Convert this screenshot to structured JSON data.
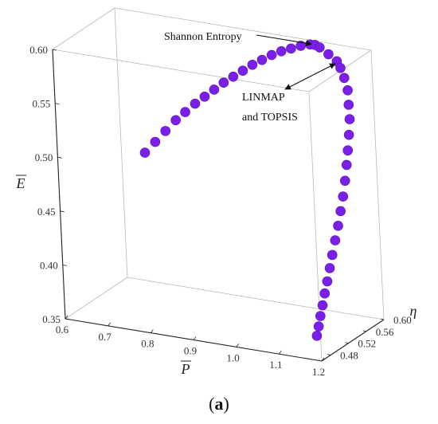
{
  "chart_data": {
    "type": "scatter",
    "projection": "3d",
    "colors": {
      "points": "#7a1fe8",
      "box": "#b8b8b8",
      "axis": "#222222"
    },
    "axes": {
      "x": {
        "label": "P",
        "overline": true,
        "range": [
          0.6,
          1.2
        ],
        "ticks": [
          "0.6",
          "0.7",
          "0.8",
          "0.9",
          "1.0",
          "1.1",
          "1.2"
        ]
      },
      "y": {
        "label": "η",
        "range": [
          0.46,
          0.6
        ],
        "ticks": [
          "0.48",
          "0.52",
          "0.56",
          "0.60"
        ]
      },
      "z": {
        "label": "E",
        "overline": true,
        "range": [
          0.35,
          0.6
        ],
        "ticks": [
          "0.35",
          "0.40",
          "0.45",
          "0.50",
          "0.55",
          "0.60"
        ]
      }
    },
    "series": [
      {
        "points": [
          [
            0.72,
            0.54,
            0.49
          ],
          [
            0.74,
            0.545,
            0.5
          ],
          [
            0.76,
            0.55,
            0.51
          ],
          [
            0.78,
            0.555,
            0.52
          ],
          [
            0.8,
            0.558,
            0.528
          ],
          [
            0.82,
            0.562,
            0.536
          ],
          [
            0.84,
            0.565,
            0.543
          ],
          [
            0.86,
            0.568,
            0.55
          ],
          [
            0.88,
            0.571,
            0.557
          ],
          [
            0.9,
            0.574,
            0.563
          ],
          [
            0.92,
            0.577,
            0.569
          ],
          [
            0.94,
            0.58,
            0.575
          ],
          [
            0.96,
            0.583,
            0.58
          ],
          [
            0.98,
            0.586,
            0.585
          ],
          [
            1.0,
            0.589,
            0.589
          ],
          [
            1.02,
            0.592,
            0.592
          ],
          [
            1.04,
            0.595,
            0.595
          ],
          [
            1.06,
            0.597,
            0.597
          ],
          [
            1.07,
            0.598,
            0.597
          ],
          [
            1.08,
            0.599,
            0.595
          ],
          [
            1.1,
            0.599,
            0.59
          ],
          [
            1.12,
            0.598,
            0.585
          ],
          [
            1.13,
            0.596,
            0.58
          ],
          [
            1.14,
            0.594,
            0.572
          ],
          [
            1.15,
            0.591,
            0.562
          ],
          [
            1.155,
            0.587,
            0.55
          ],
          [
            1.16,
            0.583,
            0.538
          ],
          [
            1.162,
            0.578,
            0.525
          ],
          [
            1.163,
            0.573,
            0.512
          ],
          [
            1.164,
            0.568,
            0.5
          ],
          [
            1.165,
            0.562,
            0.487
          ],
          [
            1.165,
            0.556,
            0.474
          ],
          [
            1.164,
            0.55,
            0.462
          ],
          [
            1.163,
            0.544,
            0.45
          ],
          [
            1.161,
            0.538,
            0.438
          ],
          [
            1.159,
            0.532,
            0.426
          ],
          [
            1.157,
            0.527,
            0.415
          ],
          [
            1.155,
            0.522,
            0.404
          ],
          [
            1.153,
            0.517,
            0.394
          ],
          [
            1.151,
            0.513,
            0.384
          ],
          [
            1.149,
            0.509,
            0.375
          ],
          [
            1.147,
            0.506,
            0.366
          ],
          [
            1.145,
            0.503,
            0.358
          ]
        ]
      }
    ],
    "annotations": [
      {
        "text": "Shannon Entropy",
        "point": [
          1.07,
          0.598,
          0.597
        ]
      },
      {
        "text": "LINMAP",
        "point": [
          1.12,
          0.598,
          0.585
        ]
      },
      {
        "text": "and TOPSIS",
        "point": [
          1.12,
          0.598,
          0.585
        ]
      }
    ]
  },
  "panel_label": {
    "open": "(",
    "letter": "a",
    "close": ")"
  }
}
